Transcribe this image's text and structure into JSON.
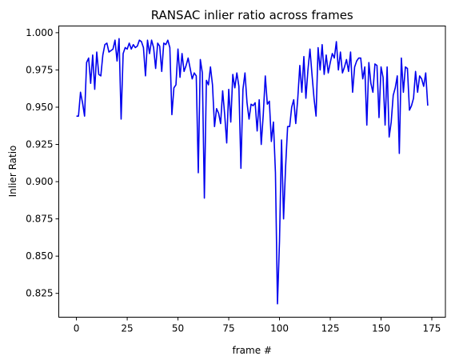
{
  "chart_data": {
    "type": "line",
    "title": "RANSAC inlier ratio across frames",
    "xlabel": "frame #",
    "ylabel": "Inlier Ratio",
    "xlim": [
      -8.7,
      181.7
    ],
    "ylim": [
      0.809,
      1.0045
    ],
    "xticks": [
      0,
      25,
      50,
      75,
      100,
      125,
      150,
      175
    ],
    "xtick_labels": [
      "0",
      "25",
      "50",
      "75",
      "100",
      "125",
      "150",
      "175"
    ],
    "yticks": [
      0.825,
      0.85,
      0.875,
      0.9,
      0.925,
      0.95,
      0.975,
      1.0
    ],
    "ytick_labels": [
      "0.825",
      "0.850",
      "0.875",
      "0.900",
      "0.925",
      "0.950",
      "0.975",
      "1.000"
    ],
    "grid": false,
    "series": [
      {
        "name": "inlier ratio",
        "color": "#0000ee",
        "x": [
          0,
          1,
          2,
          3,
          4,
          5,
          6,
          7,
          8,
          9,
          10,
          11,
          12,
          13,
          14,
          15,
          16,
          17,
          18,
          19,
          20,
          21,
          22,
          23,
          24,
          25,
          26,
          27,
          28,
          29,
          30,
          31,
          32,
          33,
          34,
          35,
          36,
          37,
          38,
          39,
          40,
          41,
          42,
          43,
          44,
          45,
          46,
          47,
          48,
          49,
          50,
          51,
          52,
          53,
          54,
          55,
          56,
          57,
          58,
          59,
          60,
          61,
          62,
          63,
          64,
          65,
          66,
          67,
          68,
          69,
          70,
          71,
          72,
          73,
          74,
          75,
          76,
          77,
          78,
          79,
          80,
          81,
          82,
          83,
          84,
          85,
          86,
          87,
          88,
          89,
          90,
          91,
          92,
          93,
          94,
          95,
          96,
          97,
          98,
          99,
          100,
          101,
          102,
          103,
          104,
          105,
          106,
          107,
          108,
          109,
          110,
          111,
          112,
          113,
          114,
          115,
          116,
          117,
          118,
          119,
          120,
          121,
          122,
          123,
          124,
          125,
          126,
          127,
          128,
          129,
          130,
          131,
          132,
          133,
          134,
          135,
          136,
          137,
          138,
          139,
          140,
          141,
          142,
          143,
          144,
          145,
          146,
          147,
          148,
          149,
          150,
          151,
          152,
          153,
          154,
          155,
          156,
          157,
          158,
          159,
          160,
          161,
          162,
          163,
          164,
          165,
          166,
          167,
          168,
          169,
          170,
          171,
          172,
          173
        ],
        "y": [
          0.944,
          0.944,
          0.96,
          0.953,
          0.944,
          0.98,
          0.983,
          0.966,
          0.985,
          0.962,
          0.987,
          0.972,
          0.971,
          0.985,
          0.992,
          0.993,
          0.987,
          0.988,
          0.989,
          0.995,
          0.981,
          0.996,
          0.942,
          0.986,
          0.99,
          0.989,
          0.993,
          0.989,
          0.992,
          0.99,
          0.991,
          0.995,
          0.994,
          0.99,
          0.971,
          0.995,
          0.986,
          0.995,
          0.99,
          0.976,
          0.993,
          0.991,
          0.974,
          0.993,
          0.992,
          0.995,
          0.99,
          0.945,
          0.963,
          0.965,
          0.989,
          0.97,
          0.986,
          0.974,
          0.978,
          0.983,
          0.976,
          0.969,
          0.973,
          0.971,
          0.906,
          0.982,
          0.973,
          0.889,
          0.968,
          0.965,
          0.977,
          0.965,
          0.937,
          0.949,
          0.946,
          0.939,
          0.961,
          0.945,
          0.926,
          0.962,
          0.94,
          0.972,
          0.963,
          0.973,
          0.964,
          0.909,
          0.962,
          0.973,
          0.953,
          0.942,
          0.952,
          0.951,
          0.953,
          0.934,
          0.955,
          0.925,
          0.945,
          0.971,
          0.952,
          0.954,
          0.927,
          0.94,
          0.906,
          0.818,
          0.86,
          0.928,
          0.875,
          0.91,
          0.937,
          0.937,
          0.95,
          0.955,
          0.939,
          0.956,
          0.978,
          0.96,
          0.984,
          0.956,
          0.975,
          0.989,
          0.972,
          0.956,
          0.944,
          0.99,
          0.975,
          0.992,
          0.972,
          0.985,
          0.973,
          0.98,
          0.986,
          0.983,
          0.994,
          0.975,
          0.987,
          0.973,
          0.977,
          0.982,
          0.974,
          0.987,
          0.96,
          0.977,
          0.981,
          0.983,
          0.983,
          0.969,
          0.977,
          0.938,
          0.98,
          0.966,
          0.96,
          0.979,
          0.978,
          0.943,
          0.977,
          0.97,
          0.938,
          0.977,
          0.93,
          0.94,
          0.958,
          0.963,
          0.971,
          0.919,
          0.983,
          0.96,
          0.977,
          0.976,
          0.948,
          0.951,
          0.956,
          0.974,
          0.96,
          0.971,
          0.969,
          0.964,
          0.973,
          0.951
        ]
      }
    ]
  }
}
